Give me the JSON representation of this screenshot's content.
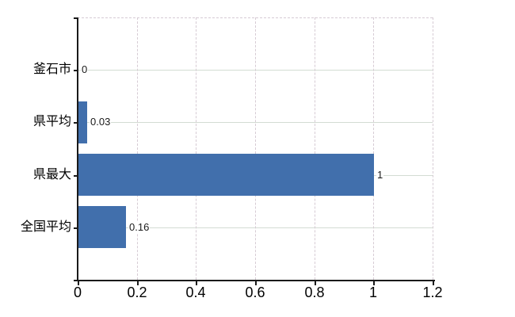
{
  "chart_data": {
    "type": "bar",
    "orientation": "horizontal",
    "title": "",
    "xlabel": "",
    "ylabel": "",
    "categories": [
      "釜石市",
      "県平均",
      "県最大",
      "全国平均"
    ],
    "values": [
      0,
      0.03,
      1,
      0.16
    ],
    "value_labels": [
      "0",
      "0.03",
      "1",
      "0.16"
    ],
    "xlim": [
      0,
      1.2
    ],
    "xticks": [
      0,
      0.2,
      0.4,
      0.6,
      0.8,
      1,
      1.2
    ],
    "xtick_labels": [
      "0",
      "0.2",
      "0.4",
      "0.6",
      "0.8",
      "1",
      "1.2"
    ],
    "grid": "on",
    "legend": "none",
    "colors": {
      "bar": "#416fac",
      "axis": "#1a1a1a",
      "h_gridline": "#d3dcd3",
      "v_gridline": "#d6cbd4",
      "frame": "#d6cbd4",
      "category_text": "#000000",
      "tick_text": "#000000",
      "value_text": "#1a1a1a",
      "background": "#ffffff"
    }
  }
}
